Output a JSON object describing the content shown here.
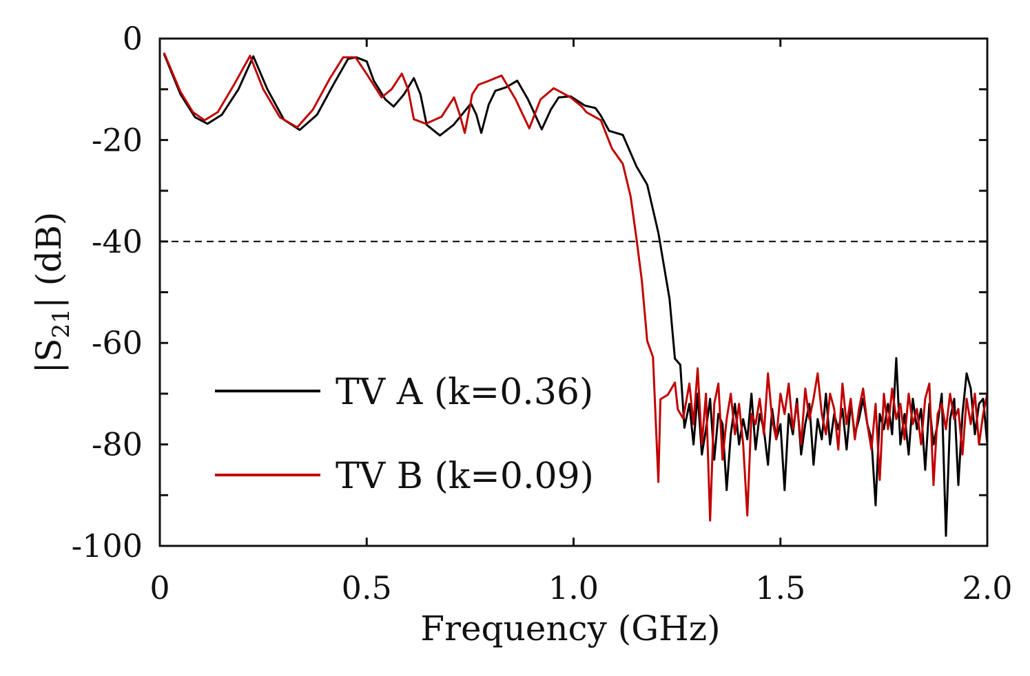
{
  "chart_data": {
    "type": "line",
    "xlabel": "Frequency (GHz)",
    "ylabel_parts": [
      "|S",
      "21",
      "| (dB)"
    ],
    "xlim": [
      0,
      2.0
    ],
    "ylim": [
      -100,
      0
    ],
    "xticks": [
      0,
      0.5,
      1.0,
      1.5,
      2.0
    ],
    "xtick_labels": [
      "0",
      "0.5",
      "1.0",
      "1.5",
      "2.0"
    ],
    "yticks": [
      0,
      -20,
      -40,
      -60,
      -80,
      -100
    ],
    "ytick_labels": [
      "0",
      "-20",
      "-40",
      "-60",
      "-80",
      "-100"
    ],
    "yminor_step": 10,
    "grid": false,
    "legend_position": "lower-left",
    "reference_line": {
      "y": -40,
      "style": "dashed",
      "color": "#000000"
    },
    "series": [
      {
        "name": "TV A (k=0.36)",
        "color": "#000000",
        "points": [
          [
            0.01,
            -3
          ],
          [
            0.05,
            -11
          ],
          [
            0.085,
            -15.5
          ],
          [
            0.115,
            -16.8
          ],
          [
            0.15,
            -15
          ],
          [
            0.19,
            -10
          ],
          [
            0.226,
            -3.5
          ],
          [
            0.26,
            -10
          ],
          [
            0.3,
            -16
          ],
          [
            0.338,
            -18
          ],
          [
            0.38,
            -15
          ],
          [
            0.42,
            -9
          ],
          [
            0.455,
            -4
          ],
          [
            0.475,
            -3.7
          ],
          [
            0.5,
            -4.5
          ],
          [
            0.517,
            -8.3
          ],
          [
            0.545,
            -12
          ],
          [
            0.565,
            -13.4
          ],
          [
            0.59,
            -11
          ],
          [
            0.614,
            -7.8
          ],
          [
            0.63,
            -11
          ],
          [
            0.645,
            -17
          ],
          [
            0.677,
            -19.1
          ],
          [
            0.71,
            -17
          ],
          [
            0.752,
            -12.8
          ],
          [
            0.765,
            -15
          ],
          [
            0.777,
            -18.6
          ],
          [
            0.795,
            -13
          ],
          [
            0.811,
            -10.3
          ],
          [
            0.837,
            -9.6
          ],
          [
            0.864,
            -8.3
          ],
          [
            0.89,
            -12
          ],
          [
            0.923,
            -17.9
          ],
          [
            0.945,
            -14
          ],
          [
            0.964,
            -11.6
          ],
          [
            0.993,
            -11.4
          ],
          [
            1.027,
            -13.2
          ],
          [
            1.053,
            -13.7
          ],
          [
            1.066,
            -15.2
          ],
          [
            1.086,
            -18.2
          ],
          [
            1.119,
            -19
          ],
          [
            1.152,
            -25.2
          ],
          [
            1.178,
            -28.8
          ],
          [
            1.205,
            -38.3
          ],
          [
            1.232,
            -51.3
          ],
          [
            1.245,
            -63.1
          ],
          [
            1.258,
            -64.3
          ],
          [
            1.268,
            -76.7
          ],
          [
            1.28,
            -72
          ],
          [
            1.29,
            -80
          ],
          [
            1.3,
            -70
          ],
          [
            1.31,
            -82
          ],
          [
            1.32,
            -77
          ],
          [
            1.33,
            -71
          ],
          [
            1.34,
            -83
          ],
          [
            1.35,
            -74
          ],
          [
            1.36,
            -76
          ],
          [
            1.37,
            -89
          ],
          [
            1.38,
            -78
          ],
          [
            1.39,
            -72
          ],
          [
            1.4,
            -80
          ],
          [
            1.41,
            -75
          ],
          [
            1.42,
            -79
          ],
          [
            1.43,
            -70
          ],
          [
            1.44,
            -81
          ],
          [
            1.45,
            -74
          ],
          [
            1.46,
            -77
          ],
          [
            1.47,
            -84
          ],
          [
            1.48,
            -73
          ],
          [
            1.49,
            -79
          ],
          [
            1.5,
            -76
          ],
          [
            1.51,
            -89
          ],
          [
            1.52,
            -74
          ],
          [
            1.53,
            -78
          ],
          [
            1.54,
            -71
          ],
          [
            1.55,
            -82
          ],
          [
            1.56,
            -76
          ],
          [
            1.57,
            -72
          ],
          [
            1.58,
            -84
          ],
          [
            1.59,
            -75
          ],
          [
            1.6,
            -79
          ],
          [
            1.61,
            -70
          ],
          [
            1.62,
            -80
          ],
          [
            1.63,
            -74
          ],
          [
            1.64,
            -77
          ],
          [
            1.65,
            -73
          ],
          [
            1.66,
            -81
          ],
          [
            1.67,
            -72
          ],
          [
            1.68,
            -78
          ],
          [
            1.69,
            -75
          ],
          [
            1.7,
            -71
          ],
          [
            1.71,
            -76
          ],
          [
            1.72,
            -79
          ],
          [
            1.73,
            -92
          ],
          [
            1.74,
            -74
          ],
          [
            1.75,
            -77
          ],
          [
            1.76,
            -72
          ],
          [
            1.77,
            -78
          ],
          [
            1.78,
            -63
          ],
          [
            1.79,
            -80
          ],
          [
            1.8,
            -74
          ],
          [
            1.81,
            -82
          ],
          [
            1.82,
            -71
          ],
          [
            1.83,
            -77
          ],
          [
            1.84,
            -73
          ],
          [
            1.85,
            -85
          ],
          [
            1.86,
            -72
          ],
          [
            1.87,
            -80
          ],
          [
            1.88,
            -76
          ],
          [
            1.89,
            -70
          ],
          [
            1.9,
            -98
          ],
          [
            1.91,
            -75
          ],
          [
            1.92,
            -71
          ],
          [
            1.93,
            -88
          ],
          [
            1.94,
            -74
          ],
          [
            1.95,
            -66
          ],
          [
            1.96,
            -69
          ],
          [
            1.97,
            -78
          ],
          [
            1.98,
            -72
          ],
          [
            1.99,
            -71
          ],
          [
            2.0,
            -80
          ]
        ]
      },
      {
        "name": "TV B (k=0.09)",
        "color": "#c00000",
        "points": [
          [
            0.01,
            -2.8
          ],
          [
            0.05,
            -10.5
          ],
          [
            0.08,
            -14.5
          ],
          [
            0.108,
            -16.1
          ],
          [
            0.14,
            -14.5
          ],
          [
            0.18,
            -9
          ],
          [
            0.218,
            -3.4
          ],
          [
            0.25,
            -10
          ],
          [
            0.29,
            -15.5
          ],
          [
            0.332,
            -17.5
          ],
          [
            0.37,
            -14
          ],
          [
            0.41,
            -8
          ],
          [
            0.443,
            -3.7
          ],
          [
            0.473,
            -3.7
          ],
          [
            0.5,
            -7
          ],
          [
            0.536,
            -11.6
          ],
          [
            0.56,
            -10
          ],
          [
            0.585,
            -6.9
          ],
          [
            0.6,
            -10
          ],
          [
            0.614,
            -15.9
          ],
          [
            0.643,
            -16.8
          ],
          [
            0.681,
            -15.4
          ],
          [
            0.711,
            -11.6
          ],
          [
            0.725,
            -15
          ],
          [
            0.737,
            -18.6
          ],
          [
            0.755,
            -11
          ],
          [
            0.77,
            -9.1
          ],
          [
            0.793,
            -8.4
          ],
          [
            0.826,
            -7.3
          ],
          [
            0.86,
            -12
          ],
          [
            0.893,
            -17.7
          ],
          [
            0.92,
            -12
          ],
          [
            0.952,
            -9.8
          ],
          [
            0.993,
            -11.6
          ],
          [
            1.02,
            -13.4
          ],
          [
            1.031,
            -14.5
          ],
          [
            1.066,
            -16.1
          ],
          [
            1.093,
            -21.7
          ],
          [
            1.119,
            -24.7
          ],
          [
            1.138,
            -31.2
          ],
          [
            1.152,
            -39.4
          ],
          [
            1.165,
            -47.7
          ],
          [
            1.178,
            -59.6
          ],
          [
            1.192,
            -62.8
          ],
          [
            1.205,
            -87.4
          ],
          [
            1.21,
            -71.1
          ],
          [
            1.228,
            -70.2
          ],
          [
            1.245,
            -67.8
          ],
          [
            1.252,
            -73.1
          ],
          [
            1.265,
            -74.9
          ],
          [
            1.28,
            -68
          ],
          [
            1.29,
            -76
          ],
          [
            1.3,
            -65
          ],
          [
            1.31,
            -80
          ],
          [
            1.32,
            -70
          ],
          [
            1.33,
            -95
          ],
          [
            1.34,
            -72
          ],
          [
            1.35,
            -68
          ],
          [
            1.36,
            -83
          ],
          [
            1.37,
            -75
          ],
          [
            1.38,
            -70
          ],
          [
            1.39,
            -78
          ],
          [
            1.4,
            -72
          ],
          [
            1.41,
            -80
          ],
          [
            1.42,
            -94
          ],
          [
            1.43,
            -74
          ],
          [
            1.44,
            -76
          ],
          [
            1.45,
            -71
          ],
          [
            1.46,
            -78
          ],
          [
            1.47,
            -66
          ],
          [
            1.48,
            -75
          ],
          [
            1.49,
            -79
          ],
          [
            1.5,
            -70
          ],
          [
            1.51,
            -74
          ],
          [
            1.52,
            -68
          ],
          [
            1.53,
            -77
          ],
          [
            1.54,
            -72
          ],
          [
            1.55,
            -80
          ],
          [
            1.56,
            -69
          ],
          [
            1.57,
            -75
          ],
          [
            1.58,
            -71
          ],
          [
            1.59,
            -66
          ],
          [
            1.6,
            -74
          ],
          [
            1.61,
            -78
          ],
          [
            1.62,
            -70
          ],
          [
            1.63,
            -73
          ],
          [
            1.64,
            -81
          ],
          [
            1.65,
            -68
          ],
          [
            1.66,
            -76
          ],
          [
            1.67,
            -71
          ],
          [
            1.68,
            -79
          ],
          [
            1.69,
            -73
          ],
          [
            1.7,
            -69
          ],
          [
            1.71,
            -76
          ],
          [
            1.72,
            -81
          ],
          [
            1.73,
            -72
          ],
          [
            1.74,
            -87
          ],
          [
            1.75,
            -70
          ],
          [
            1.76,
            -77
          ],
          [
            1.77,
            -69
          ],
          [
            1.78,
            -75
          ],
          [
            1.79,
            -72
          ],
          [
            1.8,
            -79
          ],
          [
            1.81,
            -70
          ],
          [
            1.82,
            -76
          ],
          [
            1.83,
            -73
          ],
          [
            1.84,
            -80
          ],
          [
            1.85,
            -71
          ],
          [
            1.86,
            -68
          ],
          [
            1.87,
            -88
          ],
          [
            1.88,
            -74
          ],
          [
            1.89,
            -72
          ],
          [
            1.9,
            -77
          ],
          [
            1.91,
            -70
          ],
          [
            1.92,
            -75
          ],
          [
            1.93,
            -73
          ],
          [
            1.94,
            -82
          ],
          [
            1.95,
            -71
          ],
          [
            1.96,
            -76
          ],
          [
            1.97,
            -70
          ],
          [
            1.98,
            -80
          ],
          [
            1.99,
            -74
          ],
          [
            2.0,
            -70
          ]
        ]
      }
    ]
  }
}
